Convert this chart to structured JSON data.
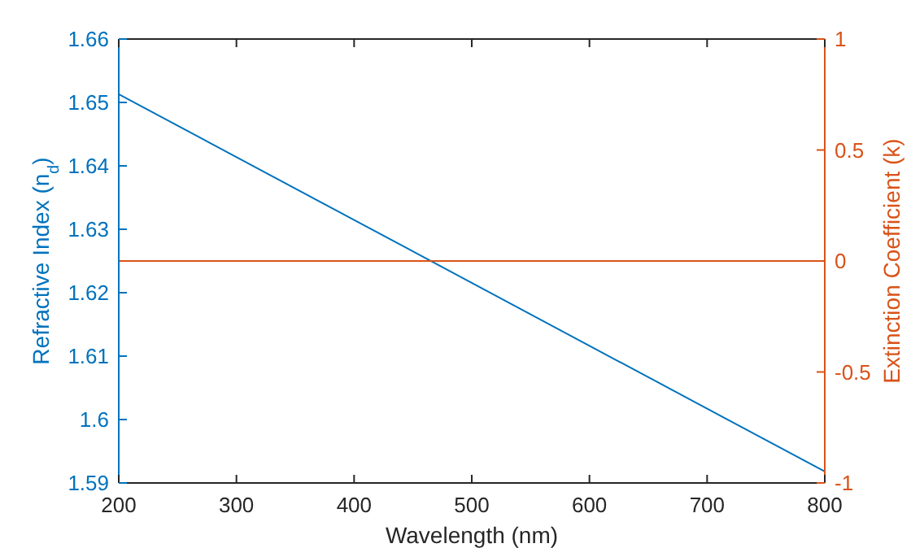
{
  "chart_data": {
    "type": "line",
    "xlabel": "Wavelength (nm)",
    "ylabel": "Refractive Index (n$_{d}$)",
    "y2label": "Extinction Coefficient (k)",
    "xlim": [
      200,
      800
    ],
    "x": [
      200,
      800
    ],
    "xticks": [
      200,
      300,
      400,
      500,
      600,
      700,
      800
    ],
    "ylim": [
      1.59,
      1.66
    ],
    "yticks": [
      1.59,
      1.6,
      1.61,
      1.62,
      1.63,
      1.64,
      1.65,
      1.66
    ],
    "y2lim": [
      -1,
      1
    ],
    "y2ticks": [
      -1,
      -0.5,
      0,
      0.5,
      1
    ],
    "series": [
      {
        "color": "#0072bd",
        "values": [
          1.6513,
          1.5918
        ]
      },
      {
        "color": "#d95319",
        "axis": "y2",
        "values": [
          0,
          0
        ]
      }
    ]
  }
}
